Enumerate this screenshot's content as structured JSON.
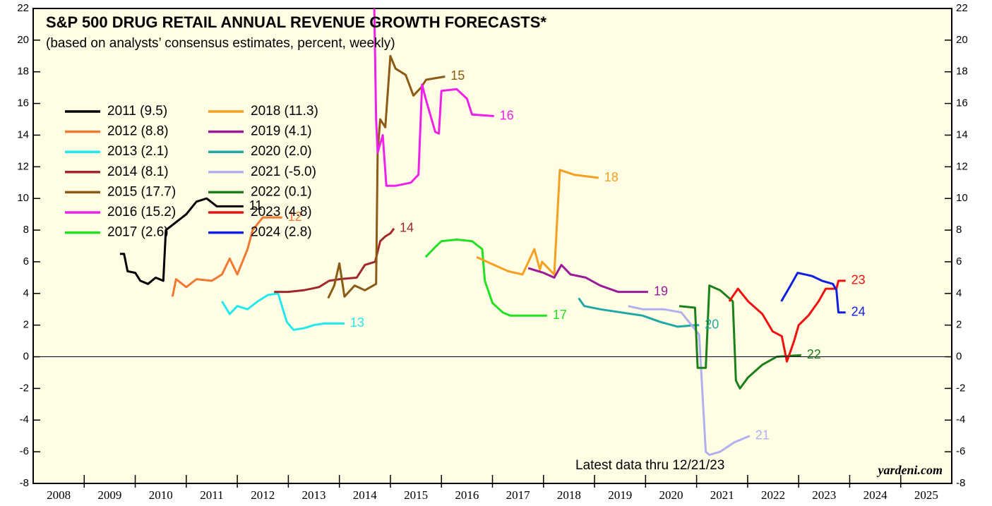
{
  "chart_data": {
    "type": "line",
    "title": "S&P 500 DRUG RETAIL ANNUAL REVENUE GROWTH FORECASTS*",
    "subtitle": "(based on analysts’ consensus estimates, percent, weekly)",
    "annotation": "Latest data thru 12/21/23",
    "source": "yardeni.com",
    "x_categories": [
      "2008",
      "2009",
      "2010",
      "2011",
      "2012",
      "2013",
      "2014",
      "2015",
      "2016",
      "2017",
      "2018",
      "2019",
      "2020",
      "2021",
      "2022",
      "2023",
      "2024",
      "2025"
    ],
    "xlim": [
      2008,
      2026
    ],
    "ylim": [
      -8,
      22
    ],
    "yticks": [
      -8,
      -6,
      -4,
      -2,
      0,
      2,
      4,
      6,
      8,
      10,
      12,
      14,
      16,
      18,
      20,
      22
    ],
    "y2lim": [
      -8,
      22
    ],
    "y2ticks": [
      -8,
      -6,
      -4,
      -2,
      0,
      2,
      4,
      6,
      8,
      10,
      12,
      14,
      16,
      18,
      20,
      22
    ],
    "series": [
      {
        "name": "2011 (9.5)",
        "end_label": "11",
        "color": "#000000",
        "x": [
          2009.7,
          2009.78,
          2009.85,
          2010.0,
          2010.1,
          2010.25,
          2010.4,
          2010.55,
          2010.6,
          2010.8,
          2011.0,
          2011.2,
          2011.4,
          2011.6,
          2012.12
        ],
        "values": [
          6.5,
          6.5,
          5.4,
          5.3,
          4.8,
          4.6,
          5.0,
          4.8,
          8.0,
          8.5,
          9.0,
          9.8,
          10.0,
          9.5,
          9.5
        ]
      },
      {
        "name": "2012 (8.8)",
        "end_label": "12",
        "color": "#f07830",
        "x": [
          2010.73,
          2010.8,
          2011.0,
          2011.2,
          2011.5,
          2011.7,
          2011.85,
          2012.0,
          2012.2,
          2012.3,
          2012.5,
          2012.7,
          2012.88
        ],
        "values": [
          3.8,
          4.9,
          4.4,
          4.9,
          4.8,
          5.2,
          6.2,
          5.2,
          6.8,
          8.0,
          8.8,
          8.8,
          8.8
        ]
      },
      {
        "name": "2013 (2.1)",
        "end_label": "13",
        "color": "#22e8f0",
        "x": [
          2011.7,
          2011.85,
          2012.0,
          2012.2,
          2012.4,
          2012.6,
          2012.8,
          2012.97,
          2013.1,
          2013.3,
          2013.5,
          2013.7,
          2014.1
        ],
        "values": [
          3.5,
          2.7,
          3.2,
          3.0,
          3.5,
          3.9,
          4.0,
          2.2,
          1.7,
          1.8,
          2.0,
          2.1,
          2.1
        ]
      },
      {
        "name": "2014 (8.1)",
        "end_label": "14",
        "color": "#a0282a",
        "x": [
          2012.72,
          2013.0,
          2013.3,
          2013.6,
          2013.8,
          2014.0,
          2014.34,
          2014.5,
          2014.7,
          2014.8,
          2014.9,
          2015.0,
          2015.07
        ],
        "values": [
          4.1,
          4.1,
          4.2,
          4.4,
          4.8,
          4.9,
          5.0,
          5.8,
          6.0,
          7.3,
          7.6,
          7.8,
          8.1
        ]
      },
      {
        "name": "2015 (17.7)",
        "end_label": "15",
        "color": "#8b5a14",
        "x": [
          2013.78,
          2013.9,
          2014.0,
          2014.1,
          2014.3,
          2014.5,
          2014.72,
          2014.75,
          2014.8,
          2014.9,
          2015.0,
          2015.1,
          2015.3,
          2015.45,
          2015.6,
          2015.7,
          2016.07
        ],
        "values": [
          3.7,
          4.5,
          5.9,
          3.8,
          4.5,
          4.2,
          4.6,
          13.0,
          15.0,
          14.5,
          19.0,
          18.2,
          17.8,
          16.5,
          17.0,
          17.5,
          17.7
        ]
      },
      {
        "name": "2016 (15.2)",
        "end_label": "16",
        "color": "#f020e8",
        "x": [
          2014.68,
          2014.72,
          2014.75,
          2014.85,
          2014.92,
          2015.1,
          2015.4,
          2015.55,
          2015.62,
          2015.7,
          2015.88,
          2015.95,
          2016.0,
          2016.3,
          2016.5,
          2016.6,
          2017.03
        ],
        "values": [
          23,
          15,
          12.9,
          14,
          10.8,
          10.8,
          11.0,
          11.5,
          17.2,
          16.2,
          14.2,
          14.1,
          16.8,
          16.9,
          16.3,
          15.3,
          15.2
        ]
      },
      {
        "name": "2017 (2.6)",
        "end_label": "17",
        "color": "#22e022",
        "x": [
          2015.69,
          2015.9,
          2016.0,
          2016.3,
          2016.6,
          2016.8,
          2016.85,
          2017.0,
          2017.2,
          2017.35,
          2017.6,
          2018.07
        ],
        "values": [
          6.3,
          7.0,
          7.3,
          7.4,
          7.3,
          6.8,
          4.8,
          3.4,
          2.8,
          2.6,
          2.6,
          2.6
        ]
      },
      {
        "name": "2018 (11.3)",
        "end_label": "18",
        "color": "#f5a020",
        "x": [
          2016.69,
          2017.03,
          2017.31,
          2017.59,
          2017.82,
          2017.93,
          2017.97,
          2018.21,
          2018.32,
          2018.6,
          2019.08
        ],
        "values": [
          6.3,
          5.8,
          5.4,
          5.2,
          6.8,
          5.5,
          6.0,
          5.2,
          11.8,
          11.5,
          11.3
        ]
      },
      {
        "name": "2019 (4.1)",
        "end_label": "19",
        "color": "#9a1a9a",
        "x": [
          2017.7,
          2018.0,
          2018.21,
          2018.35,
          2018.53,
          2018.83,
          2019.11,
          2019.46,
          2020.05
        ],
        "values": [
          5.6,
          5.3,
          5.0,
          5.8,
          5.2,
          5.0,
          4.5,
          4.1,
          4.1
        ]
      },
      {
        "name": "2020 (2.0)",
        "end_label": "20",
        "color": "#20a8a8",
        "x": [
          2018.69,
          2018.8,
          2019.11,
          2019.52,
          2019.94,
          2020.29,
          2020.63,
          2020.98,
          2021.05
        ],
        "values": [
          3.7,
          3.2,
          3.0,
          2.8,
          2.6,
          2.2,
          1.9,
          2.0,
          2.0
        ]
      },
      {
        "name": "2021 (-5.0)",
        "end_label": "21",
        "color": "#b0b0f0",
        "x": [
          2019.66,
          2019.94,
          2020.35,
          2020.7,
          2021.05,
          2021.18,
          2021.25,
          2021.46,
          2021.74,
          2022.04
        ],
        "values": [
          3.2,
          3.0,
          3.0,
          2.8,
          1.4,
          -6.0,
          -6.2,
          -6.0,
          -5.4,
          -5.0
        ]
      },
      {
        "name": "2022 (0.1)",
        "end_label": "22",
        "color": "#1a801a",
        "x": [
          2020.66,
          2020.97,
          2021.02,
          2021.18,
          2021.25,
          2021.46,
          2021.71,
          2021.77,
          2021.85,
          2022.01,
          2022.29,
          2022.57,
          2023.05
        ],
        "values": [
          3.2,
          3.1,
          -0.7,
          -0.7,
          4.5,
          4.2,
          3.5,
          -1.5,
          -2.0,
          -1.3,
          -0.5,
          0.0,
          0.1
        ]
      },
      {
        "name": "2023 (4.8)",
        "end_label": "23",
        "color": "#f01010",
        "x": [
          2021.64,
          2021.81,
          2022.01,
          2022.29,
          2022.49,
          2022.67,
          2022.77,
          2022.91,
          2023.0,
          2023.19,
          2023.39,
          2023.53,
          2023.74,
          2023.78,
          2023.92
        ],
        "values": [
          3.5,
          4.3,
          3.5,
          2.7,
          1.6,
          1.3,
          -0.3,
          1.0,
          2.0,
          2.6,
          3.5,
          4.3,
          4.3,
          4.8,
          4.8
        ]
      },
      {
        "name": "2024 (2.8)",
        "end_label": "24",
        "color": "#1020e0",
        "x": [
          2022.66,
          2022.84,
          2022.98,
          2023.26,
          2023.46,
          2023.67,
          2023.74,
          2023.78,
          2023.92
        ],
        "values": [
          3.5,
          4.5,
          5.3,
          5.1,
          4.8,
          4.6,
          4.2,
          2.8,
          2.8
        ]
      }
    ]
  }
}
